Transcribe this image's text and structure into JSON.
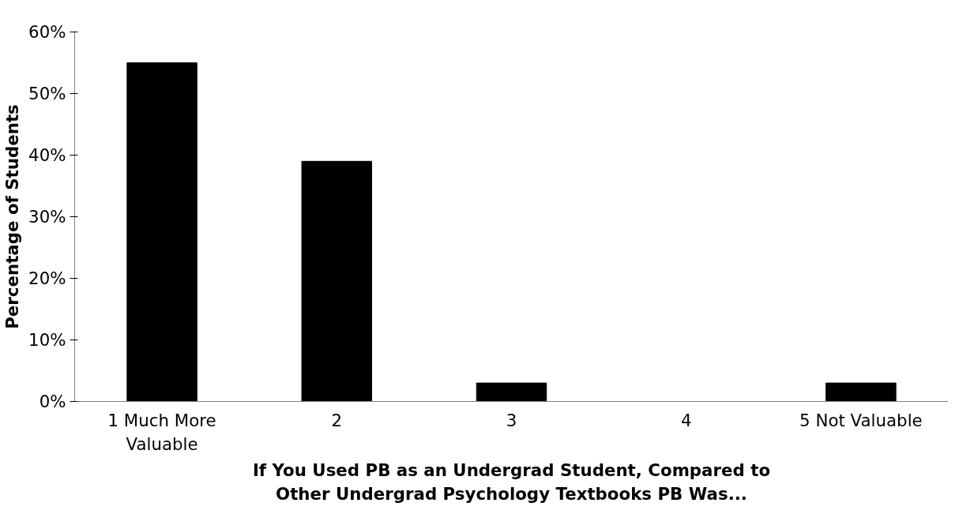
{
  "chart_data": {
    "type": "bar",
    "xlabel": "If You Used PB as an Undergrad Student, Compared to Other Undergrad Psychology Textbooks PB Was...",
    "ylabel": "Percentage of Students",
    "categories": [
      "1 Much More Valuable",
      "2",
      "3",
      "4",
      "5 Not Valuable"
    ],
    "values": [
      55,
      39,
      3,
      0,
      3
    ],
    "color": "#000000",
    "ylim": [
      0,
      60
    ],
    "yticks": [
      {
        "value": 0,
        "label": "0%"
      },
      {
        "value": 10,
        "label": "10%"
      },
      {
        "value": 20,
        "label": "20%"
      },
      {
        "value": 30,
        "label": "30%"
      },
      {
        "value": 40,
        "label": "40%"
      },
      {
        "value": 50,
        "label": "50%"
      },
      {
        "value": 60,
        "label": "60%"
      }
    ],
    "grid": false
  }
}
